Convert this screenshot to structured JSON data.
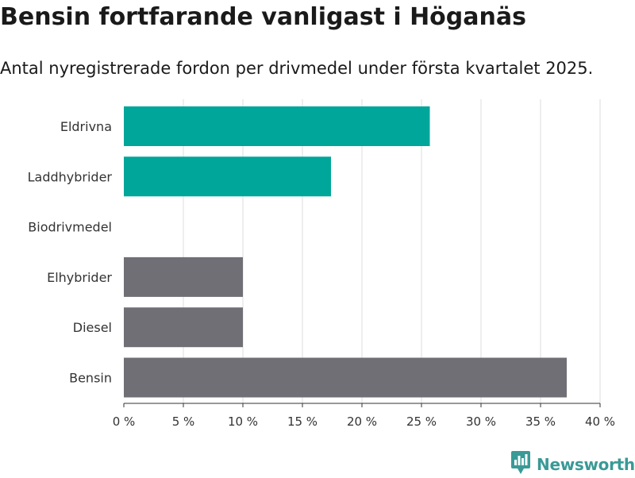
{
  "title": "Bensin fortfarande vanligast i Höganäs",
  "subtitle": "Antal nyregistrerade fordon per drivmedel under första kvartalet 2025.",
  "brand": {
    "name": "Newsworthy",
    "color": "#3a9a96",
    "icon": "bar-chart-icon"
  },
  "chart_data": {
    "type": "bar",
    "orientation": "horizontal",
    "categories": [
      "Eldrivna",
      "Laddhybrider",
      "Biodrivmedel",
      "Elhybrider",
      "Diesel",
      "Bensin"
    ],
    "values": [
      25.7,
      17.4,
      0,
      10,
      10,
      37.2
    ],
    "colors": [
      "#00a69a",
      "#00a69a",
      "#00a69a",
      "#706f75",
      "#706f75",
      "#706f75"
    ],
    "xlim": [
      0,
      40
    ],
    "xticks": [
      0,
      5,
      10,
      15,
      20,
      25,
      30,
      35,
      40
    ],
    "xtick_labels": [
      "0 %",
      "5 %",
      "10 %",
      "15 %",
      "20 %",
      "25 %",
      "30 %",
      "35 %",
      "40 %"
    ],
    "grid": true
  }
}
